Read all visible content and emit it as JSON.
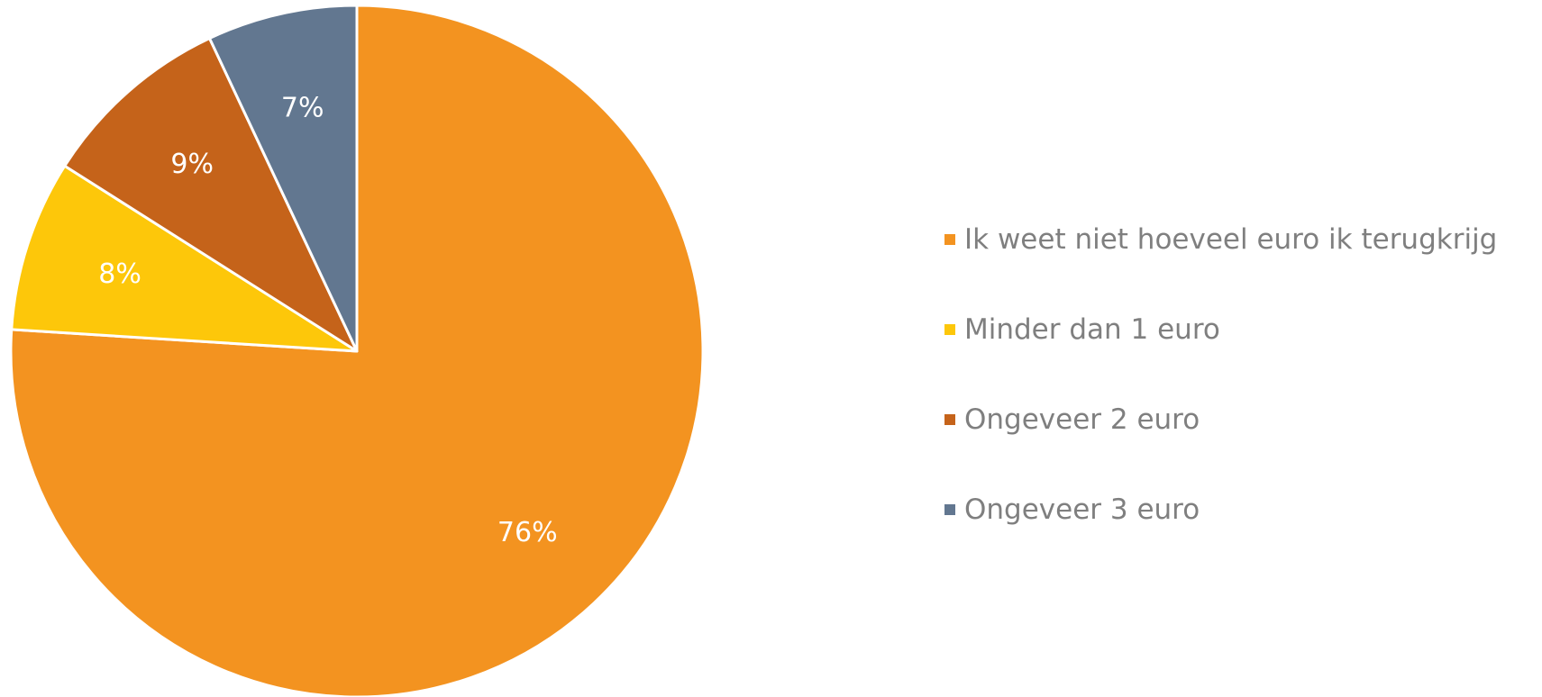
{
  "chart_data": {
    "type": "pie",
    "title": "",
    "legend_position": "right",
    "slices": [
      {
        "name": "Ik weet niet hoeveel euro ik terugkrijg",
        "value": 76,
        "label": "76%",
        "color": "#F39320"
      },
      {
        "name": "Minder dan 1 euro",
        "value": 8,
        "label": "8%",
        "color": "#FDC70A"
      },
      {
        "name": "Ongeveer 2 euro",
        "value": 9,
        "label": "9%",
        "color": "#C5631A"
      },
      {
        "name": "Ongeveer 3 euro",
        "value": 7,
        "label": "7%",
        "color": "#627790"
      }
    ]
  },
  "legend": {
    "items": [
      {
        "label": "Ik weet niet hoeveel euro ik terugkrijg",
        "color": "#F39320"
      },
      {
        "label": "Minder dan 1 euro",
        "color": "#FDC70A"
      },
      {
        "label": "Ongeveer 2 euro",
        "color": "#C5631A"
      },
      {
        "label": "Ongeveer 3 euro",
        "color": "#627790"
      }
    ]
  }
}
